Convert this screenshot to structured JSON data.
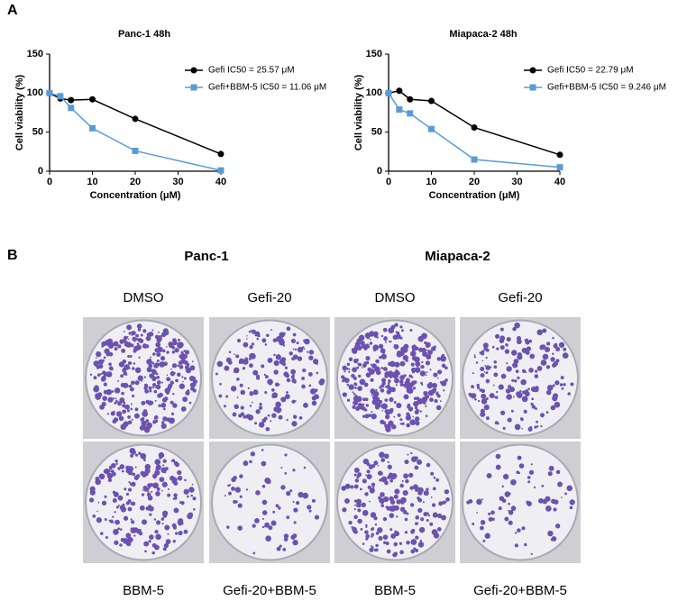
{
  "panel_labels": [
    "A",
    "B"
  ],
  "chart_data": [
    {
      "type": "line",
      "title": "Panc-1 48h",
      "x_label": "Concentration (μM)",
      "y_label": "Cell viability (%)",
      "x": [
        0,
        2.5,
        5,
        10,
        20,
        40
      ],
      "series": [
        {
          "name": "Gefi IC50 = 25.57 μM",
          "color": "#000000",
          "marker": "circle",
          "values": [
            100,
            93,
            91,
            92,
            67,
            22
          ]
        },
        {
          "name": "Gefi+BBM-5 IC50 = 11.06 μM",
          "color": "#5b9bd5",
          "marker": "square",
          "values": [
            100,
            96,
            81,
            55,
            26,
            1
          ]
        }
      ],
      "xlim": [
        0,
        40
      ],
      "xticks": [
        0,
        10,
        20,
        30,
        40
      ],
      "ylim": [
        0,
        150
      ],
      "yticks": [
        0,
        50,
        100,
        150
      ],
      "legend": "upper right"
    },
    {
      "type": "line",
      "title": "Miapaca-2 48h",
      "x_label": "Concentration (μM)",
      "y_label": "Cell viability (%)",
      "x": [
        0,
        2.5,
        5,
        10,
        20,
        40
      ],
      "series": [
        {
          "name": "Gefi IC50 = 22.79 μM",
          "color": "#000000",
          "marker": "circle",
          "values": [
            100,
            103,
            92,
            90,
            56,
            21
          ]
        },
        {
          "name": "Gefi+BBM-5 IC50 = 9.246 μM",
          "color": "#5b9bd5",
          "marker": "square",
          "values": [
            100,
            79,
            74,
            54,
            15,
            5
          ]
        }
      ],
      "xlim": [
        0,
        40
      ],
      "xticks": [
        0,
        10,
        20,
        30,
        40
      ],
      "ylim": [
        0,
        150
      ],
      "yticks": [
        0,
        50,
        100,
        150
      ],
      "legend": "upper right"
    }
  ],
  "colony_assay": [
    {
      "title": "Panc-1",
      "conditions": [
        "DMSO",
        "Gefi-20",
        "BBM-5",
        "Gefi-20+BBM-5"
      ]
    },
    {
      "title": "Miapaca-2",
      "conditions": [
        "DMSO",
        "Gefi-20",
        "BBM-5",
        "Gefi-20+BBM-5"
      ]
    }
  ]
}
